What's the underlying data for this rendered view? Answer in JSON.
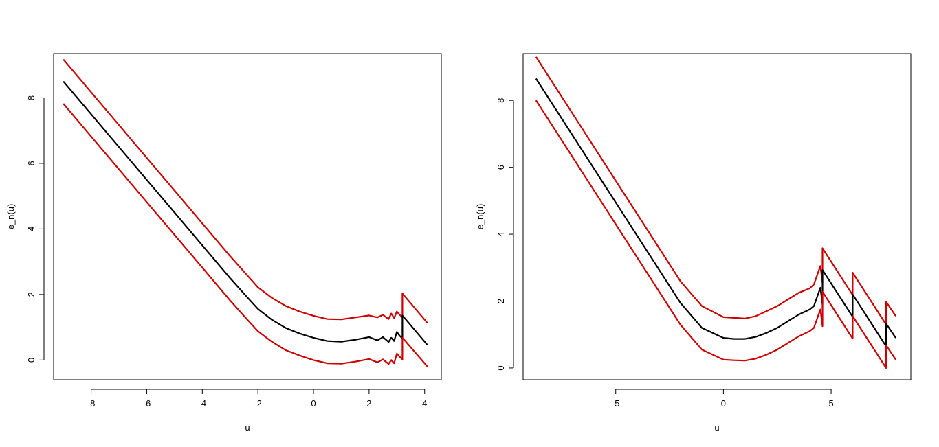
{
  "chart_data": [
    {
      "type": "line",
      "xlabel": "u",
      "ylabel": "e_n(u)",
      "xlim": [
        -9.35,
        4.6
      ],
      "ylim": [
        -0.6,
        9.35
      ],
      "x_ticks": [
        -8,
        -6,
        -4,
        -2,
        0,
        2,
        4
      ],
      "x_tick_labels": [
        "-8",
        "-6",
        "-4",
        "-2",
        "0",
        "2",
        "4"
      ],
      "y_ticks": [
        0,
        2,
        4,
        6,
        8
      ],
      "y_tick_labels": [
        "0",
        "2",
        "4",
        "6",
        "8"
      ],
      "grid": false,
      "series": [
        {
          "color": "#cc0000",
          "points": [
            [
              -9.0,
              9.17
            ],
            [
              -8.0,
              8.17
            ],
            [
              -7.0,
              7.17
            ],
            [
              -6.0,
              6.17
            ],
            [
              -5.0,
              5.17
            ],
            [
              -4.0,
              4.17
            ],
            [
              -3.0,
              3.17
            ],
            [
              -2.4,
              2.6
            ],
            [
              -2.0,
              2.22
            ],
            [
              -1.5,
              1.9
            ],
            [
              -1.0,
              1.65
            ],
            [
              -0.5,
              1.48
            ],
            [
              0.0,
              1.35
            ],
            [
              0.5,
              1.25
            ],
            [
              1.0,
              1.24
            ],
            [
              1.5,
              1.3
            ],
            [
              2.0,
              1.36
            ],
            [
              2.3,
              1.3
            ],
            [
              2.5,
              1.38
            ],
            [
              2.7,
              1.25
            ],
            [
              2.8,
              1.42
            ],
            [
              2.9,
              1.28
            ],
            [
              3.0,
              1.48
            ],
            [
              3.1,
              1.38
            ],
            [
              3.2,
              1.3
            ],
            [
              3.2,
              2.03
            ],
            [
              4.1,
              1.13
            ]
          ]
        },
        {
          "color": "#000000",
          "points": [
            [
              -9.0,
              8.5
            ],
            [
              -8.0,
              7.5
            ],
            [
              -7.0,
              6.5
            ],
            [
              -6.0,
              5.5
            ],
            [
              -5.0,
              4.5
            ],
            [
              -4.0,
              3.5
            ],
            [
              -3.0,
              2.5
            ],
            [
              -2.4,
              1.93
            ],
            [
              -2.0,
              1.56
            ],
            [
              -1.5,
              1.23
            ],
            [
              -1.0,
              0.98
            ],
            [
              -0.5,
              0.81
            ],
            [
              0.0,
              0.68
            ],
            [
              0.5,
              0.58
            ],
            [
              1.0,
              0.56
            ],
            [
              1.5,
              0.62
            ],
            [
              2.0,
              0.7
            ],
            [
              2.3,
              0.6
            ],
            [
              2.5,
              0.7
            ],
            [
              2.7,
              0.55
            ],
            [
              2.8,
              0.68
            ],
            [
              2.9,
              0.58
            ],
            [
              3.0,
              0.86
            ],
            [
              3.1,
              0.74
            ],
            [
              3.2,
              0.66
            ],
            [
              3.2,
              1.36
            ],
            [
              4.1,
              0.46
            ]
          ]
        },
        {
          "color": "#cc0000",
          "points": [
            [
              -9.0,
              7.82
            ],
            [
              -8.0,
              6.82
            ],
            [
              -7.0,
              5.82
            ],
            [
              -6.0,
              4.82
            ],
            [
              -5.0,
              3.82
            ],
            [
              -4.0,
              2.82
            ],
            [
              -3.0,
              1.82
            ],
            [
              -2.4,
              1.25
            ],
            [
              -2.0,
              0.88
            ],
            [
              -1.5,
              0.56
            ],
            [
              -1.0,
              0.3
            ],
            [
              -0.5,
              0.14
            ],
            [
              0.0,
              0.0
            ],
            [
              0.5,
              -0.1
            ],
            [
              1.0,
              -0.11
            ],
            [
              1.5,
              -0.05
            ],
            [
              2.0,
              0.03
            ],
            [
              2.3,
              -0.07
            ],
            [
              2.5,
              0.02
            ],
            [
              2.7,
              -0.12
            ],
            [
              2.8,
              0.0
            ],
            [
              2.9,
              -0.1
            ],
            [
              3.0,
              0.2
            ],
            [
              3.1,
              0.1
            ],
            [
              3.2,
              0.02
            ],
            [
              3.2,
              0.68
            ],
            [
              4.1,
              -0.2
            ]
          ]
        }
      ]
    },
    {
      "type": "line",
      "xlabel": "u",
      "ylabel": "e_n(u)",
      "xlim": [
        -9.3,
        8.7
      ],
      "ylim": [
        -0.35,
        9.4
      ],
      "x_ticks": [
        -5,
        0,
        5
      ],
      "x_tick_labels": [
        "-5",
        "0",
        "5"
      ],
      "y_ticks": [
        0,
        2,
        4,
        6,
        8
      ],
      "y_tick_labels": [
        "0",
        "2",
        "4",
        "6",
        "8"
      ],
      "grid": false,
      "series": [
        {
          "color": "#cc0000",
          "points": [
            [
              -8.7,
              9.3
            ],
            [
              -7.0,
              7.6
            ],
            [
              -5.0,
              5.6
            ],
            [
              -3.0,
              3.6
            ],
            [
              -2.0,
              2.6
            ],
            [
              -1.0,
              1.85
            ],
            [
              0.0,
              1.52
            ],
            [
              0.5,
              1.5
            ],
            [
              1.0,
              1.48
            ],
            [
              1.5,
              1.55
            ],
            [
              2.0,
              1.7
            ],
            [
              2.5,
              1.85
            ],
            [
              3.0,
              2.05
            ],
            [
              3.5,
              2.25
            ],
            [
              4.0,
              2.38
            ],
            [
              4.2,
              2.5
            ],
            [
              4.5,
              3.05
            ],
            [
              4.6,
              2.55
            ],
            [
              4.6,
              3.58
            ],
            [
              6.0,
              2.18
            ],
            [
              6.0,
              2.85
            ],
            [
              7.55,
              1.3
            ],
            [
              7.55,
              1.98
            ],
            [
              8.0,
              1.55
            ]
          ]
        },
        {
          "color": "#000000",
          "points": [
            [
              -8.7,
              8.65
            ],
            [
              -7.0,
              6.95
            ],
            [
              -5.0,
              4.95
            ],
            [
              -3.0,
              2.95
            ],
            [
              -2.0,
              1.95
            ],
            [
              -1.0,
              1.2
            ],
            [
              0.0,
              0.9
            ],
            [
              0.5,
              0.87
            ],
            [
              1.0,
              0.87
            ],
            [
              1.5,
              0.93
            ],
            [
              2.0,
              1.05
            ],
            [
              2.5,
              1.2
            ],
            [
              3.0,
              1.4
            ],
            [
              3.5,
              1.6
            ],
            [
              4.0,
              1.75
            ],
            [
              4.2,
              1.85
            ],
            [
              4.5,
              2.4
            ],
            [
              4.6,
              1.9
            ],
            [
              4.6,
              2.93
            ],
            [
              6.0,
              1.53
            ],
            [
              6.0,
              2.2
            ],
            [
              7.55,
              0.65
            ],
            [
              7.55,
              1.33
            ],
            [
              8.0,
              0.9
            ]
          ]
        },
        {
          "color": "#cc0000",
          "points": [
            [
              -8.7,
              8.0
            ],
            [
              -7.0,
              6.3
            ],
            [
              -5.0,
              4.3
            ],
            [
              -3.0,
              2.3
            ],
            [
              -2.0,
              1.3
            ],
            [
              -1.0,
              0.55
            ],
            [
              0.0,
              0.25
            ],
            [
              0.5,
              0.23
            ],
            [
              1.0,
              0.22
            ],
            [
              1.5,
              0.28
            ],
            [
              2.0,
              0.4
            ],
            [
              2.5,
              0.55
            ],
            [
              3.0,
              0.75
            ],
            [
              3.5,
              0.95
            ],
            [
              4.0,
              1.1
            ],
            [
              4.2,
              1.2
            ],
            [
              4.5,
              1.75
            ],
            [
              4.6,
              1.25
            ],
            [
              4.6,
              2.28
            ],
            [
              6.0,
              0.88
            ],
            [
              6.0,
              1.55
            ],
            [
              7.55,
              0.0
            ],
            [
              7.55,
              0.68
            ],
            [
              8.0,
              0.25
            ]
          ]
        }
      ]
    }
  ]
}
